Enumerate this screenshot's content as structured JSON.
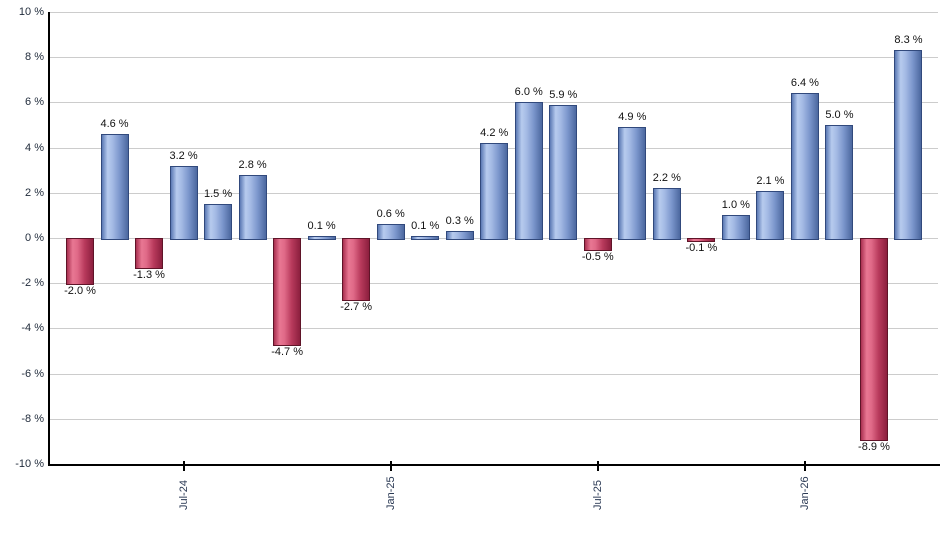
{
  "chart_data": {
    "type": "bar",
    "description": "Monthly percentage returns bar chart, blue bars positive, red bars negative",
    "ylim": [
      -10,
      10
    ],
    "grid": true,
    "legend": false,
    "y_ticks": [
      "10 %",
      "8 %",
      "6 %",
      "4 %",
      "2 %",
      "0 %",
      "-2 %",
      "-4 %",
      "-6 %",
      "-8 %",
      "-10 %"
    ],
    "y_tick_values": [
      10,
      8,
      6,
      4,
      2,
      0,
      -2,
      -4,
      -6,
      -8,
      -10
    ],
    "values": [
      -2.0,
      4.6,
      -1.3,
      3.2,
      1.5,
      2.8,
      -4.7,
      0.1,
      -2.7,
      0.6,
      0.1,
      0.3,
      4.2,
      6.0,
      5.9,
      -0.5,
      4.9,
      2.2,
      -0.1,
      1.0,
      2.1,
      6.4,
      5.0,
      -8.9,
      8.3
    ],
    "value_labels": [
      "-2.0 %",
      "4.6 %",
      "-1.3 %",
      "3.2 %",
      "1.5 %",
      "2.8 %",
      "-4.7 %",
      "0.1 %",
      "-2.7 %",
      "0.6 %",
      "0.1 %",
      "0.3 %",
      "4.2 %",
      "6.0 %",
      "5.9 %",
      "-0.5 %",
      "4.9 %",
      "2.2 %",
      "-0.1 %",
      "1.0 %",
      "2.1 %",
      "6.4 %",
      "5.0 %",
      "-8.9 %",
      "8.3 %"
    ],
    "x_ticks": [
      {
        "bar_index": 3,
        "label": "Jul-24"
      },
      {
        "bar_index": 9,
        "label": "Jan-25"
      },
      {
        "bar_index": 15,
        "label": "Jul-25"
      },
      {
        "bar_index": 21,
        "label": "Jan-26"
      }
    ],
    "colors": {
      "positive_bar": "#88a4d8",
      "positive_border": "#31497c",
      "negative_bar": "#c94f70",
      "negative_border": "#5f1428",
      "gridline": "#cccccc",
      "axis": "#000000",
      "value_label": "#111111",
      "tick_label": "#2b3a55"
    }
  }
}
